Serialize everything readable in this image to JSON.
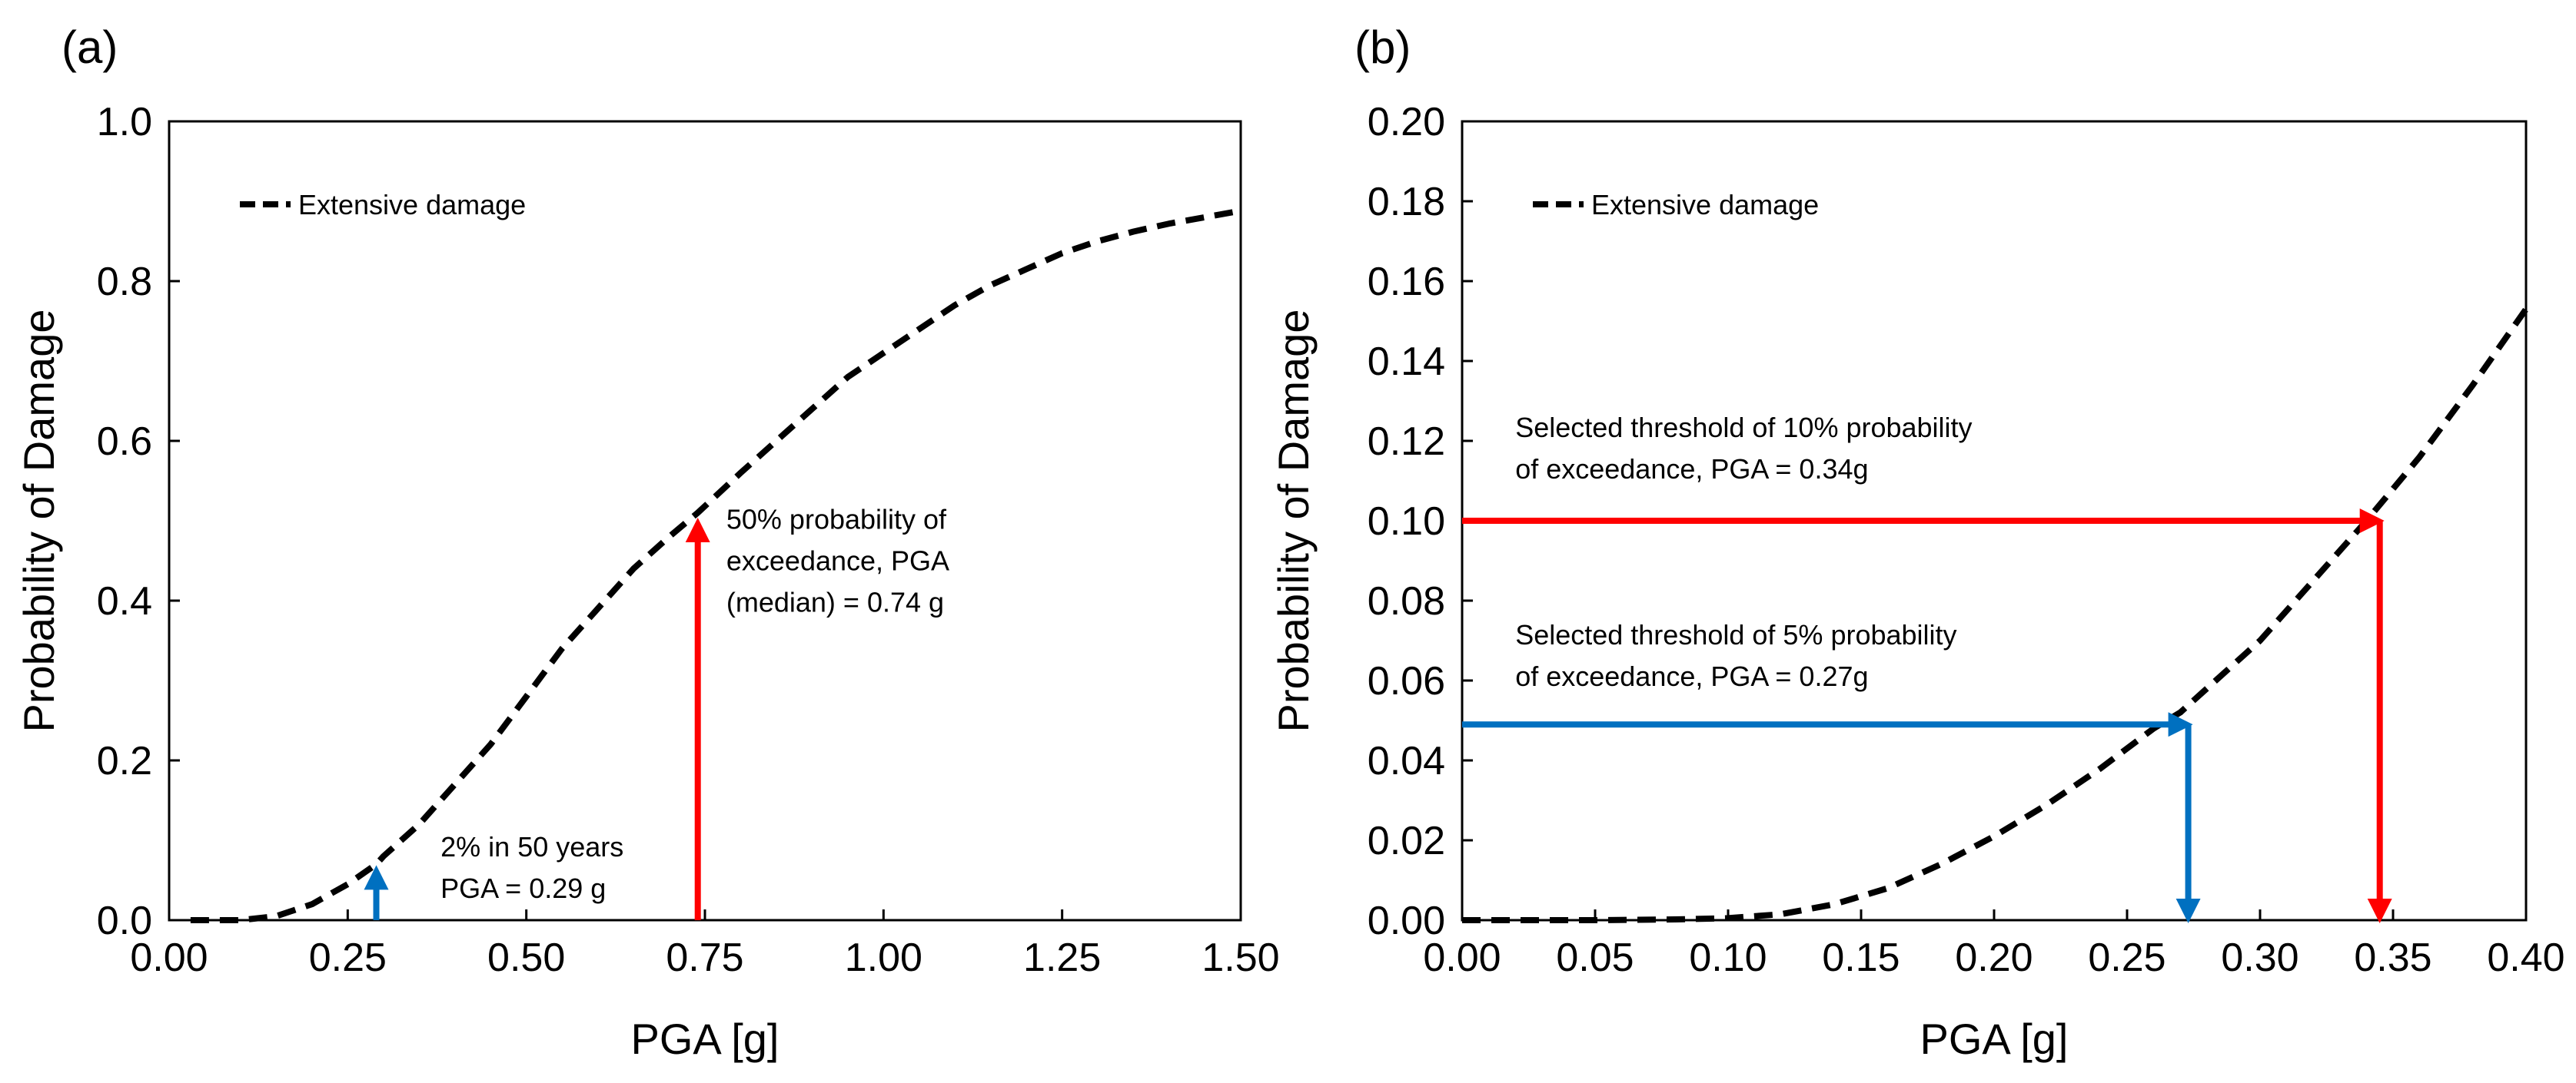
{
  "chart_data": [
    {
      "type": "line",
      "panel_label": "(a)",
      "xlabel": "PGA [g]",
      "ylabel": "Probability of Damage",
      "xlim": [
        0,
        1.5
      ],
      "ylim": [
        0,
        1.0
      ],
      "x_ticks": [
        0,
        0.25,
        0.5,
        0.75,
        1.0,
        1.25,
        1.5
      ],
      "x_tick_labels": [
        "0.00",
        "0.25",
        "0.50",
        "0.75",
        "1.00",
        "1.25",
        "1.50"
      ],
      "y_ticks": [
        0,
        0.2,
        0.4,
        0.6,
        0.8,
        1.0
      ],
      "y_tick_labels": [
        "0.0",
        "0.2",
        "0.4",
        "0.6",
        "0.8",
        "1.0"
      ],
      "grid": false,
      "legend_position": "top-left",
      "series": [
        {
          "name": "Extensive damage",
          "style": "dashed",
          "color": "#000000",
          "x": [
            0.03,
            0.05,
            0.1,
            0.15,
            0.2,
            0.25,
            0.29,
            0.3,
            0.35,
            0.4,
            0.45,
            0.5,
            0.55,
            0.6,
            0.65,
            0.7,
            0.74,
            0.8,
            0.85,
            0.9,
            0.95,
            1.0,
            1.05,
            1.1,
            1.15,
            1.2,
            1.25,
            1.3,
            1.35,
            1.4,
            1.45,
            1.5
          ],
          "y": [
            0.0,
            0.0,
            0.0,
            0.005,
            0.02,
            0.045,
            0.07,
            0.08,
            0.12,
            0.17,
            0.22,
            0.28,
            0.34,
            0.39,
            0.44,
            0.48,
            0.51,
            0.56,
            0.6,
            0.64,
            0.68,
            0.71,
            0.74,
            0.77,
            0.795,
            0.815,
            0.835,
            0.85,
            0.862,
            0.872,
            0.88,
            0.888
          ]
        }
      ],
      "markers": [
        {
          "color": "#0070c0",
          "x": 0.29,
          "y_from": 0.0,
          "y_to": 0.065,
          "direction": "up"
        },
        {
          "color": "#ff0000",
          "x": 0.74,
          "y_from": 0.0,
          "y_to": 0.5,
          "direction": "up"
        }
      ],
      "annotations": [
        {
          "lines": [
            "2% in 50 years",
            "PGA = 0.29 g"
          ],
          "x": 0.38,
          "y": 0.08
        },
        {
          "lines": [
            "50% probability of",
            "exceedance, PGA",
            "(median) = 0.74 g"
          ],
          "x": 0.78,
          "y": 0.49
        }
      ]
    },
    {
      "type": "line",
      "panel_label": "(b)",
      "xlabel": "PGA [g]",
      "ylabel": "Probability of Damage",
      "xlim": [
        0,
        0.4
      ],
      "ylim": [
        0,
        0.2
      ],
      "x_ticks": [
        0,
        0.05,
        0.1,
        0.15,
        0.2,
        0.25,
        0.3,
        0.35,
        0.4
      ],
      "x_tick_labels": [
        "0.00",
        "0.05",
        "0.10",
        "0.15",
        "0.20",
        "0.25",
        "0.30",
        "0.35",
        "0.40"
      ],
      "y_ticks": [
        0,
        0.02,
        0.04,
        0.06,
        0.08,
        0.1,
        0.12,
        0.14,
        0.16,
        0.18,
        0.2
      ],
      "y_tick_labels": [
        "0.00",
        "0.02",
        "0.04",
        "0.06",
        "0.08",
        "0.10",
        "0.12",
        "0.14",
        "0.16",
        "0.18",
        "0.20"
      ],
      "grid": false,
      "legend_position": "top-left",
      "series": [
        {
          "name": "Extensive damage",
          "style": "dashed",
          "color": "#000000",
          "x": [
            0.0,
            0.05,
            0.08,
            0.1,
            0.12,
            0.14,
            0.16,
            0.18,
            0.2,
            0.22,
            0.24,
            0.26,
            0.27,
            0.28,
            0.3,
            0.32,
            0.34,
            0.36,
            0.38,
            0.4
          ],
          "y": [
            0.0,
            0.0,
            0.0002,
            0.0005,
            0.0015,
            0.004,
            0.008,
            0.014,
            0.021,
            0.029,
            0.038,
            0.048,
            0.052,
            0.058,
            0.07,
            0.085,
            0.1,
            0.116,
            0.134,
            0.153
          ]
        }
      ],
      "markers": [
        {
          "color": "#ff0000",
          "x_from": 0.0,
          "y": 0.1,
          "x_to": 0.34,
          "direction": "right-then-down",
          "x_end": 0.345,
          "y_end": 0.0
        },
        {
          "color": "#0070c0",
          "x_from": 0.0,
          "y": 0.049,
          "x_to": 0.27,
          "direction": "right-then-down",
          "x_end": 0.273,
          "y_end": 0.0
        }
      ],
      "annotations": [
        {
          "lines": [
            "Selected threshold of 10% probability",
            "of exceedance, PGA = 0.34g"
          ],
          "x": 0.02,
          "y": 0.121
        },
        {
          "lines": [
            "Selected threshold of 5% probability",
            "of exceedance, PGA = 0.27g"
          ],
          "x": 0.02,
          "y": 0.069
        }
      ]
    }
  ]
}
